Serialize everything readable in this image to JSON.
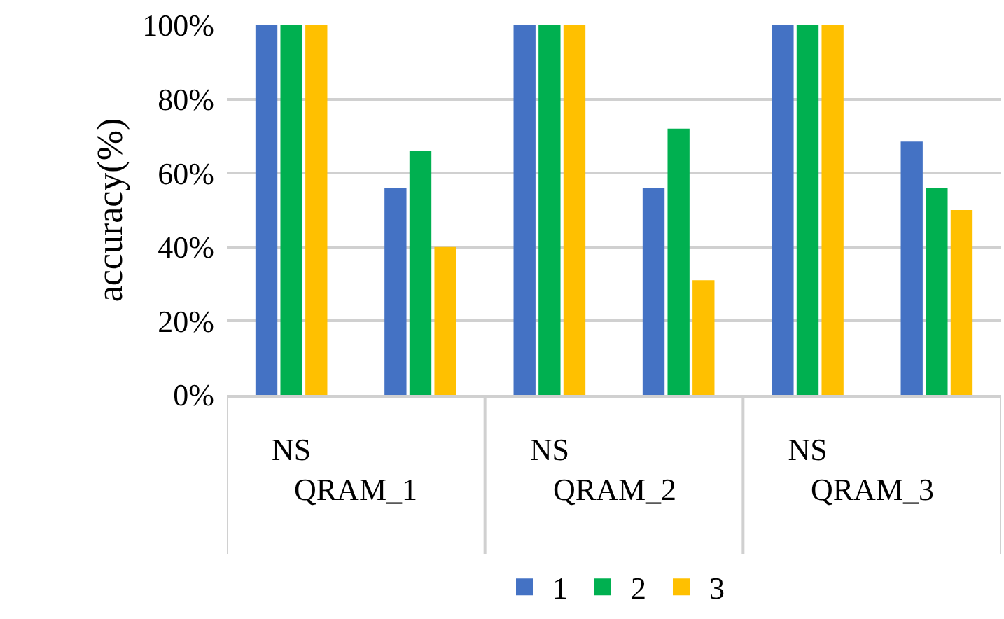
{
  "chart_data": {
    "type": "bar",
    "ylabel": "accuracy(%)",
    "categories": [
      "NS",
      null,
      "NS",
      null,
      "NS",
      null
    ],
    "series": [
      {
        "name": "1",
        "color": "#4472c4",
        "values": [
          100,
          56,
          100,
          56,
          100,
          68.5
        ]
      },
      {
        "name": "2",
        "color": "#00b050",
        "values": [
          100,
          66,
          100,
          72,
          100,
          56
        ]
      },
      {
        "name": "3",
        "color": "#ffc000",
        "values": [
          100,
          40,
          100,
          31,
          100,
          50
        ]
      }
    ],
    "annotations": [
      "QRAM_1",
      "QRAM_2",
      "QRAM_3"
    ],
    "ylim": [
      0,
      100
    ],
    "yticks": [
      {
        "value": 0,
        "label": "0%"
      },
      {
        "value": 20,
        "label": "20%"
      },
      {
        "value": 40,
        "label": "40%"
      },
      {
        "value": 60,
        "label": "60%"
      },
      {
        "value": 80,
        "label": "80%"
      },
      {
        "value": 100,
        "label": "100%"
      }
    ],
    "grid": "y",
    "legend": "bottom"
  }
}
